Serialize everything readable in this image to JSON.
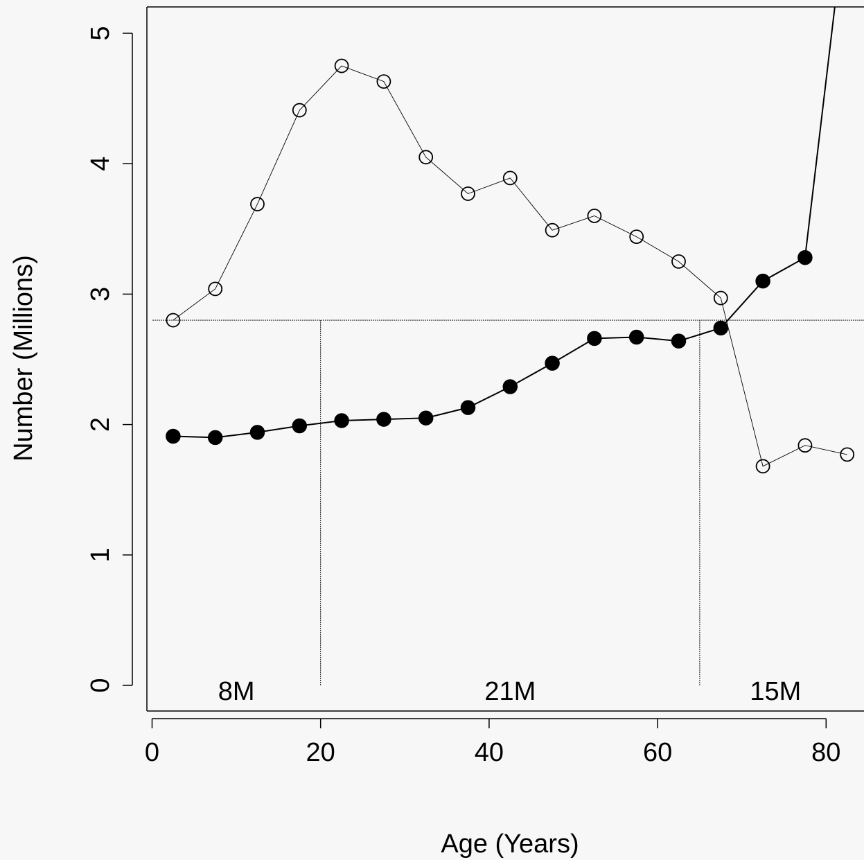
{
  "chart_data": {
    "type": "line",
    "xlabel": "Age (Years)",
    "ylabel": "Number (Millions)",
    "xlim": [
      -1.5,
      84
    ],
    "ylim": [
      -0.2,
      5.2
    ],
    "x_ticks": [
      0,
      20,
      40,
      60,
      80
    ],
    "y_ticks": [
      0,
      1,
      2,
      3,
      4,
      5
    ],
    "grid": false,
    "series": [
      {
        "marker": "open-circle",
        "x": [
          2.5,
          7.5,
          12.5,
          17.5,
          22.5,
          27.5,
          32.5,
          37.5,
          42.5,
          47.5,
          52.5,
          57.5,
          62.5,
          67.5,
          72.5,
          77.5,
          82.5
        ],
        "values": [
          2.8,
          3.04,
          3.69,
          4.41,
          4.75,
          4.63,
          4.05,
          3.77,
          3.89,
          3.49,
          3.6,
          3.44,
          3.25,
          2.97,
          1.68,
          1.84,
          1.77
        ]
      },
      {
        "marker": "filled-circle",
        "x": [
          2.5,
          7.5,
          12.5,
          17.5,
          22.5,
          27.5,
          32.5,
          37.5,
          42.5,
          47.5,
          52.5,
          57.5,
          62.5,
          67.5,
          72.5,
          77.5,
          82.5
        ],
        "values": [
          1.91,
          1.9,
          1.94,
          1.99,
          2.03,
          2.04,
          2.05,
          2.13,
          2.29,
          2.47,
          2.66,
          2.67,
          2.64,
          2.74,
          3.1,
          3.28,
          6.0
        ]
      }
    ],
    "reference_lines": {
      "horizontal_y": 2.8,
      "vertical_x": [
        20,
        65
      ]
    },
    "region_labels": [
      {
        "x": 10,
        "text": "8M"
      },
      {
        "x": 42.5,
        "text": "21M"
      },
      {
        "x": 74,
        "text": "15M"
      }
    ],
    "colors": {
      "background": "#f7f7f7",
      "line": "#000000"
    }
  }
}
